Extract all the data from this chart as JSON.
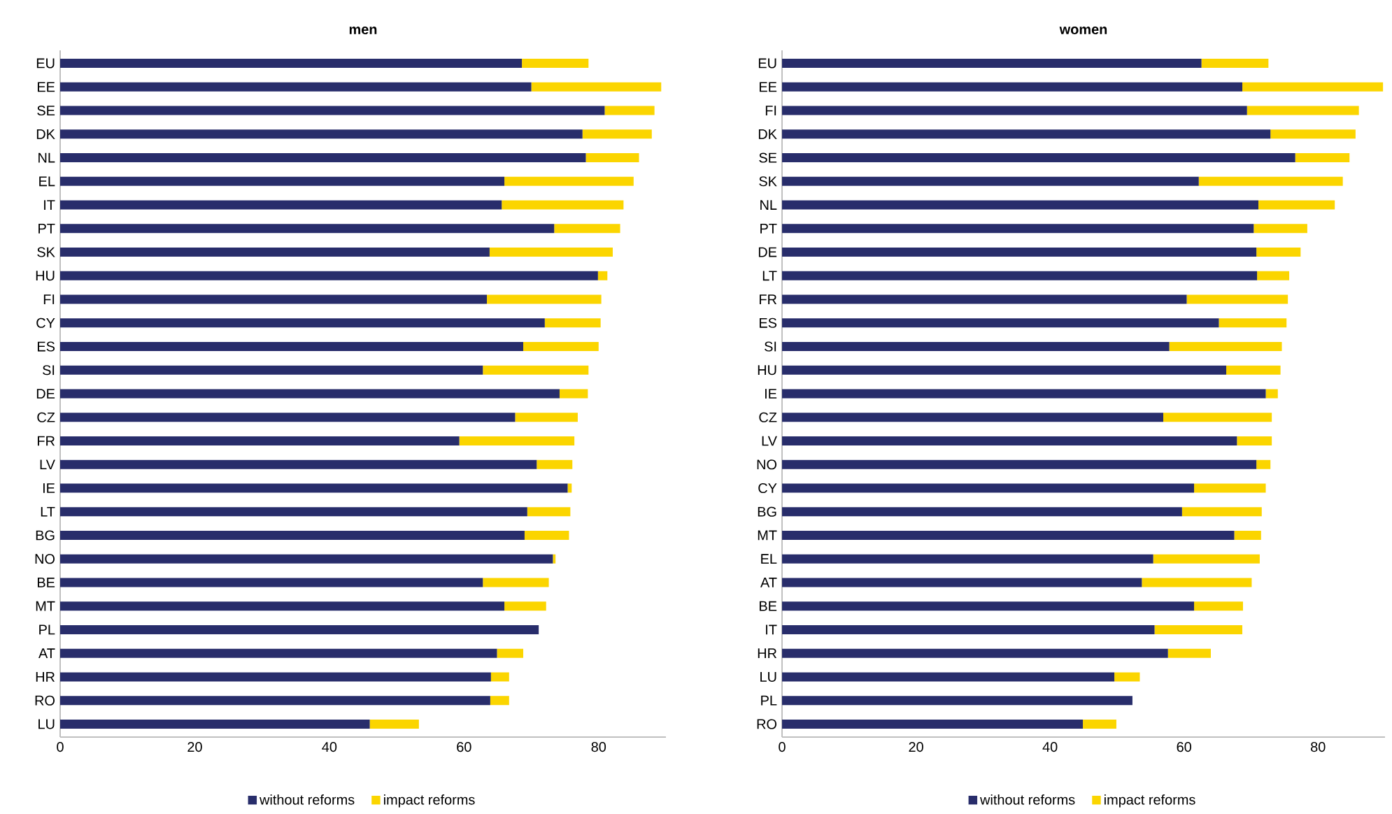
{
  "chart_data": [
    {
      "type": "bar",
      "title": "men",
      "orientation": "horizontal",
      "stacked": true,
      "legend": "bottom",
      "categories": [
        "EU",
        "EE",
        "SE",
        "DK",
        "NL",
        "EL",
        "IT",
        "PT",
        "SK",
        "HU",
        "FI",
        "CY",
        "ES",
        "SI",
        "DE",
        "CZ",
        "FR",
        "LV",
        "IE",
        "LT",
        "BG",
        "NO",
        "BE",
        "MT",
        "PL",
        "AT",
        "HR",
        "RO",
        "LU"
      ],
      "series": [
        {
          "name": "without reforms",
          "color": "#282d6b",
          "values": [
            68.6,
            70.0,
            80.9,
            77.6,
            78.1,
            66.0,
            65.6,
            73.4,
            63.8,
            79.9,
            63.4,
            72.0,
            68.8,
            62.8,
            74.2,
            67.6,
            59.3,
            70.8,
            75.4,
            69.4,
            69.0,
            73.2,
            62.8,
            66.0,
            71.1,
            64.9,
            64.0,
            63.9,
            46.0
          ]
        },
        {
          "name": "impact reforms",
          "color": "#fbd500",
          "values": [
            9.9,
            19.3,
            7.4,
            10.3,
            7.9,
            19.2,
            18.1,
            9.8,
            18.3,
            1.4,
            17.0,
            8.3,
            11.2,
            15.7,
            4.2,
            9.3,
            17.1,
            5.3,
            0.6,
            6.4,
            6.6,
            0.4,
            9.8,
            6.2,
            0,
            3.9,
            2.7,
            2.8,
            7.3
          ]
        }
      ],
      "xlim": [
        0,
        90
      ],
      "xticks": [
        0,
        20,
        40,
        60,
        80
      ]
    },
    {
      "type": "bar",
      "title": "women",
      "orientation": "horizontal",
      "stacked": true,
      "legend": "bottom",
      "categories": [
        "EU",
        "EE",
        "FI",
        "DK",
        "SE",
        "SK",
        "NL",
        "PT",
        "DE",
        "LT",
        "FR",
        "ES",
        "SI",
        "HU",
        "IE",
        "CZ",
        "LV",
        "NO",
        "CY",
        "BG",
        "MT",
        "EL",
        "AT",
        "BE",
        "IT",
        "HR",
        "LU",
        "PL",
        "RO"
      ],
      "series": [
        {
          "name": "without reforms",
          "color": "#282d6b",
          "values": [
            62.6,
            68.7,
            69.4,
            72.9,
            76.6,
            62.2,
            71.1,
            70.4,
            70.8,
            70.9,
            60.4,
            65.2,
            57.8,
            66.3,
            72.2,
            56.9,
            67.9,
            70.8,
            61.5,
            59.7,
            67.5,
            55.4,
            53.7,
            61.5,
            55.6,
            57.6,
            49.6,
            52.3,
            44.9
          ]
        },
        {
          "name": "impact reforms",
          "color": "#fbd500",
          "values": [
            10.0,
            21.0,
            16.7,
            12.7,
            8.1,
            21.5,
            11.4,
            8.0,
            6.6,
            4.8,
            15.1,
            10.1,
            16.8,
            8.1,
            1.8,
            16.2,
            5.2,
            2.1,
            10.7,
            11.9,
            4.0,
            15.9,
            16.4,
            7.3,
            13.1,
            6.4,
            3.8,
            0,
            5.0
          ]
        }
      ],
      "xlim": [
        0,
        90
      ],
      "xticks": [
        0,
        20,
        40,
        60,
        80
      ]
    }
  ]
}
